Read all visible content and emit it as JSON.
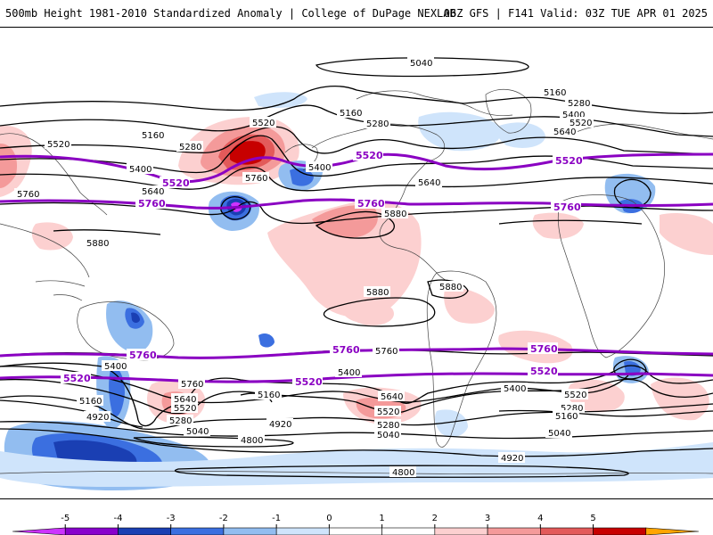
{
  "header": {
    "title": "500mb Height 1981-2010 Standardized Anomaly | College of DuPage NEXLAB",
    "run_info": "06Z GFS | F141 Valid: 03Z TUE APR 01 2025"
  },
  "colorbar": {
    "ticks": [
      "-5",
      "-4",
      "-3",
      "-2",
      "-1",
      "0",
      "1",
      "2",
      "3",
      "4",
      "5"
    ],
    "colors": [
      "#cc33ff",
      "#8800cc",
      "#1a3fb3",
      "#3b6fe0",
      "#92bdf0",
      "#cfe4fb",
      "#ffffff",
      "#ffffff",
      "#fcd0d0",
      "#f49a9a",
      "#e35a5a",
      "#c70000",
      "#ffa500"
    ]
  },
  "contour_labels": {
    "black": [
      "5040",
      "5160",
      "5280",
      "5400",
      "5520",
      "5640",
      "5760",
      "5880",
      "5880",
      "5880",
      "5760",
      "5640",
      "5520",
      "5400",
      "5280",
      "5160",
      "5040",
      "4920",
      "4800",
      "4800",
      "4920",
      "5040",
      "5160",
      "5280",
      "5400",
      "5520",
      "5640",
      "5760",
      "5520",
      "5400",
      "5280",
      "5160",
      "5040",
      "4920",
      "5280",
      "5160",
      "5400",
      "5520",
      "5640",
      "5760",
      "5880",
      "5160",
      "5280",
      "5400",
      "5520",
      "5640"
    ],
    "purple": [
      "5520",
      "5760",
      "5520",
      "5760",
      "5520",
      "5760",
      "5760",
      "5520",
      "5760",
      "5520",
      "5760",
      "5520"
    ]
  },
  "colors": {
    "height_5520_5760": "#8a00c2",
    "contour": "#000000",
    "coastline": "#444444"
  }
}
